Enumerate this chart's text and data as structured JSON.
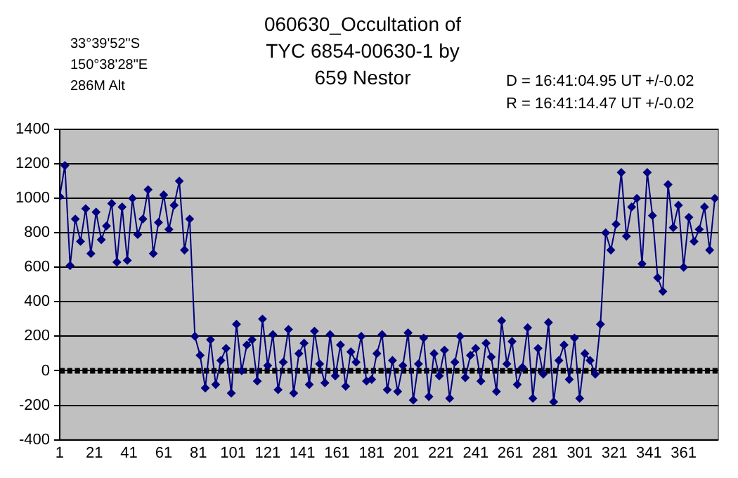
{
  "chart_data": {
    "type": "line",
    "title": "060630_Occultation of TYC 6854-00630-1 by 659 Nestor",
    "annotations": [
      "33°39'52\"S",
      "150°38'28\"E",
      "286M Alt",
      "D = 16:41:04.95 UT +/-0.02",
      "R = 16:41:14.47 UT +/-0.02"
    ],
    "x": [
      1,
      4,
      7,
      10,
      13,
      16,
      19,
      22,
      25,
      28,
      31,
      34,
      37,
      40,
      43,
      46,
      49,
      52,
      55,
      58,
      61,
      64,
      67,
      70,
      73,
      76,
      79,
      82,
      85,
      88,
      91,
      94,
      97,
      100,
      103,
      106,
      109,
      112,
      115,
      118,
      121,
      124,
      127,
      130,
      133,
      136,
      139,
      142,
      145,
      148,
      151,
      154,
      157,
      160,
      163,
      166,
      169,
      172,
      175,
      178,
      181,
      184,
      187,
      190,
      193,
      196,
      199,
      202,
      205,
      208,
      211,
      214,
      217,
      220,
      223,
      226,
      229,
      232,
      235,
      238,
      241,
      244,
      247,
      250,
      253,
      256,
      259,
      262,
      265,
      268,
      271,
      274,
      277,
      280,
      283,
      286,
      289,
      292,
      295,
      298,
      301,
      304,
      307,
      310,
      313,
      316,
      319,
      322,
      325,
      328,
      331,
      334,
      337,
      340,
      343,
      346,
      349,
      352,
      355,
      358,
      361,
      364,
      367,
      370,
      373,
      376,
      379
    ],
    "series": [
      {
        "color": "#000080",
        "values": [
          1010,
          1190,
          610,
          880,
          750,
          940,
          680,
          920,
          760,
          840,
          970,
          630,
          950,
          640,
          1000,
          790,
          880,
          1050,
          680,
          860,
          1020,
          820,
          960,
          1100,
          700,
          880,
          200,
          90,
          -100,
          180,
          -80,
          60,
          130,
          -130,
          270,
          0,
          150,
          180,
          -60,
          300,
          30,
          210,
          -110,
          50,
          240,
          -130,
          100,
          160,
          -80,
          230,
          40,
          -70,
          210,
          -30,
          150,
          -90,
          110,
          50,
          200,
          -60,
          -50,
          100,
          210,
          -110,
          60,
          -120,
          30,
          220,
          -170,
          40,
          190,
          -150,
          100,
          -30,
          120,
          -160,
          50,
          200,
          -40,
          90,
          130,
          -60,
          160,
          80,
          -120,
          290,
          40,
          170,
          -80,
          20,
          250,
          -160,
          130,
          -20,
          280,
          -180,
          60,
          150,
          -50,
          190,
          -160,
          100,
          60,
          -20,
          270,
          800,
          700,
          850,
          1150,
          780,
          950,
          1000,
          620,
          1150,
          900,
          540,
          460,
          1080,
          830,
          960,
          600,
          890,
          750,
          820,
          950,
          700,
          1000
        ]
      }
    ],
    "xlim": [
      1,
      381
    ],
    "xticks": [
      1,
      21,
      41,
      61,
      81,
      101,
      121,
      141,
      161,
      181,
      201,
      221,
      241,
      261,
      281,
      301,
      321,
      341,
      361
    ],
    "ylim": [
      -400,
      1400
    ],
    "yticks": [
      -400,
      -200,
      0,
      200,
      400,
      600,
      800,
      1000,
      1200,
      1400
    ],
    "ref_lines": [
      {
        "axis": "y",
        "value": 0,
        "color": "#000000",
        "line_style": "dashed"
      }
    ],
    "grid": "y",
    "legend": false,
    "marker": "diamond",
    "line_style": "solid"
  }
}
